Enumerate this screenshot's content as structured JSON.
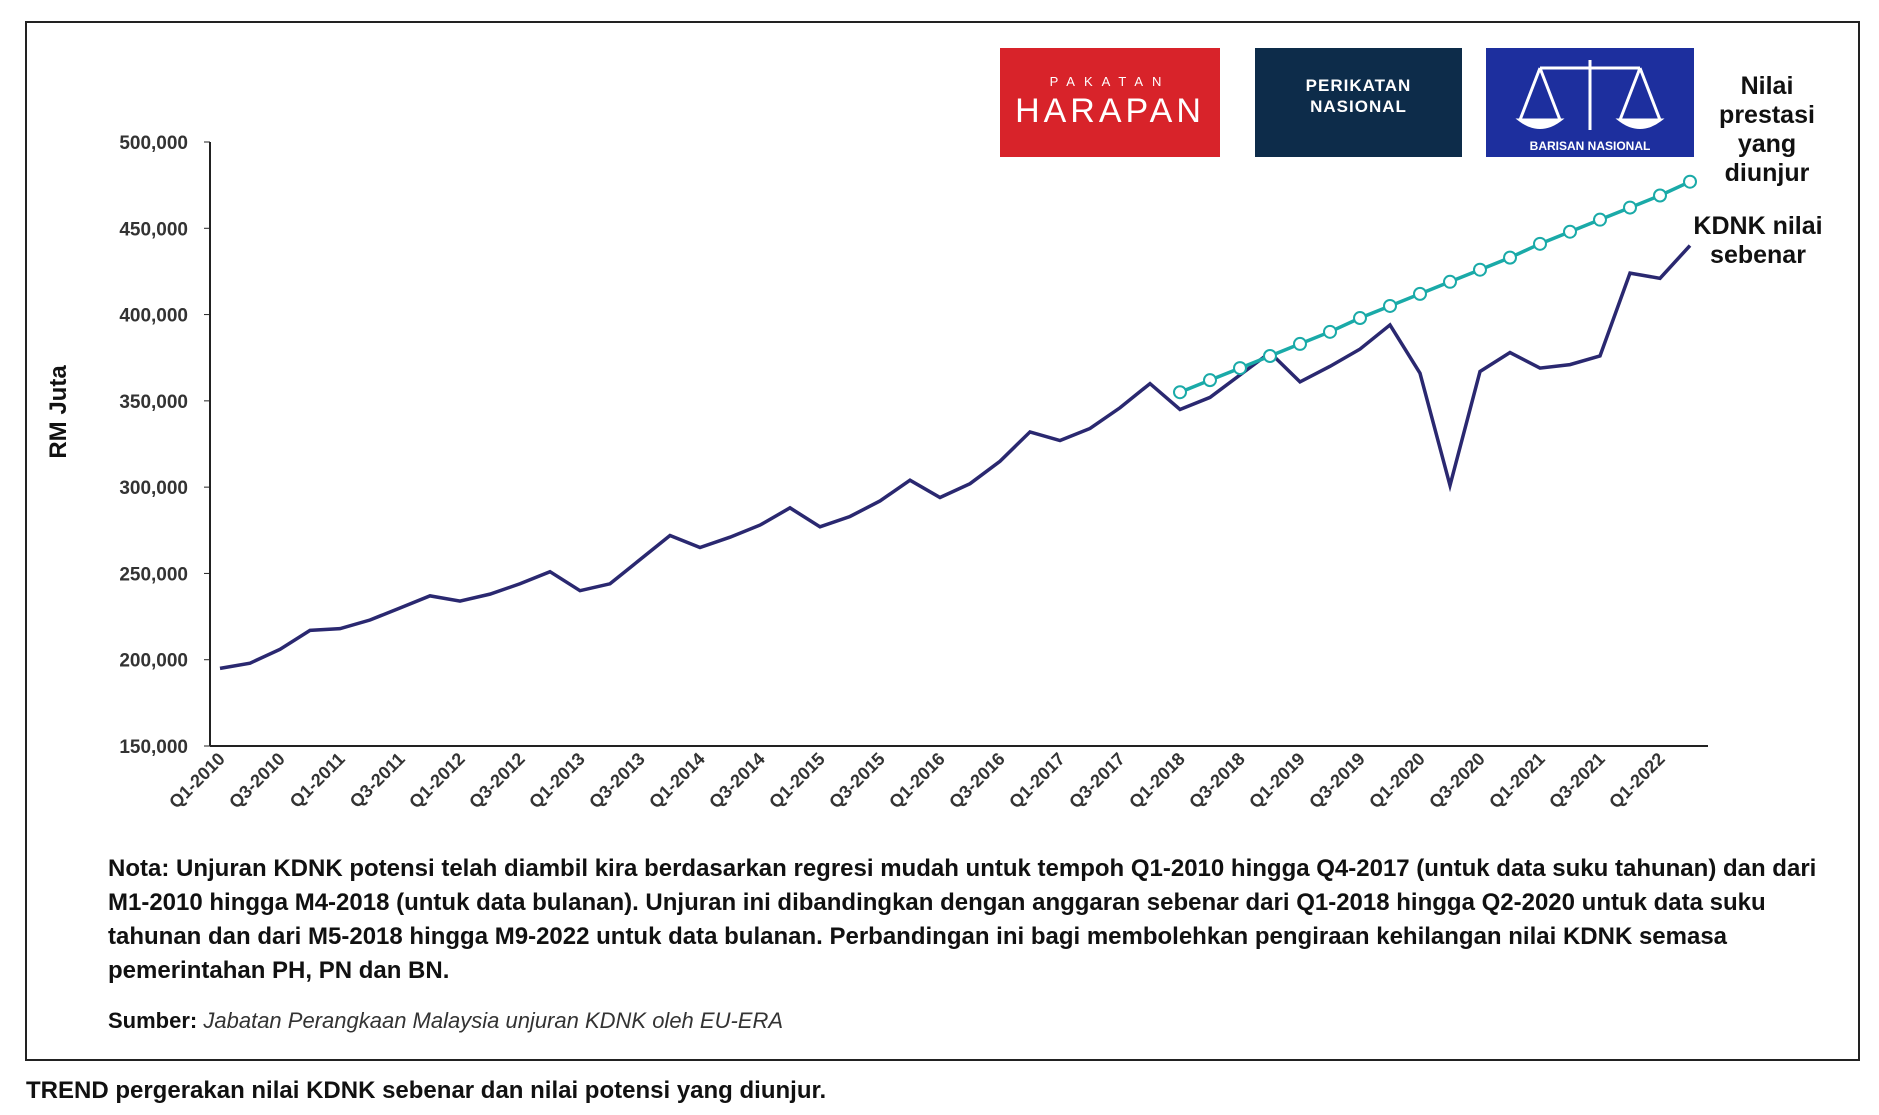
{
  "chart_data": {
    "type": "line",
    "y_label": "RM Juta",
    "logos": {
      "ph_top": "PAKATAN",
      "ph_main": "HARAPAN",
      "pn": "PERIKATAN NASIONAL",
      "bn": "BARISAN NASIONAL"
    },
    "annotations": {
      "projected": "Nilai prestasi yang diunjur",
      "actual": "KDNK nilai sebenar"
    },
    "note": "Nota: Unjuran KDNK potensi telah diambil kira berdasarkan regresi mudah untuk tempoh Q1-2010 hingga Q4-2017 (untuk data suku tahunan) dan dari M1-2010 hingga M4-2018 (untuk data bulanan). Unjuran ini dibandingkan dengan anggaran sebenar dari Q1-2018 hingga Q2-2020 untuk data suku tahunan dan dari M5-2018 hingga M9-2022 untuk data bulanan. Perbandingan ini bagi membolehkan pengiraan kehilangan nilai KDNK semasa pemerintahan PH, PN dan BN.",
    "source_label": "Sumber:",
    "source_text": "Jabatan Perangkaan Malaysia unjuran KDNK oleh EU-ERA",
    "caption": "TREND pergerakan nilai KDNK sebenar dan nilai potensi yang diunjur.",
    "categories": [
      "Q1-2010",
      null,
      "Q3-2010",
      null,
      "Q1-2011",
      null,
      "Q3-2011",
      null,
      "Q1-2012",
      null,
      "Q3-2012",
      null,
      "Q1-2013",
      null,
      "Q3-2013",
      null,
      "Q1-2014",
      null,
      "Q3-2014",
      null,
      "Q1-2015",
      null,
      "Q3-2015",
      null,
      "Q1-2016",
      null,
      "Q3-2016",
      null,
      "Q1-2017",
      null,
      "Q3-2017",
      null,
      "Q1-2018",
      null,
      "Q3-2018",
      null,
      "Q1-2019",
      null,
      "Q3-2019",
      null,
      "Q1-2020",
      null,
      "Q3-2020",
      null,
      "Q1-2021",
      null,
      "Q3-2021",
      null,
      "Q1-2022",
      null
    ],
    "series": [
      {
        "name": "KDNK nilai sebenar",
        "color": "#2a2870",
        "values": [
          195000,
          198000,
          206000,
          217000,
          218000,
          223000,
          230000,
          237000,
          234000,
          238000,
          244000,
          251000,
          240000,
          244000,
          258000,
          272000,
          265000,
          271000,
          278000,
          288000,
          277000,
          283000,
          292000,
          304000,
          294000,
          302000,
          315000,
          332000,
          327000,
          334000,
          346000,
          360000,
          345000,
          352000,
          365000,
          378000,
          361000,
          370000,
          380000,
          394000,
          366000,
          301000,
          367000,
          378000,
          369000,
          371000,
          376000,
          424000,
          421000,
          440000
        ]
      },
      {
        "name": "Nilai prestasi yang diunjur",
        "color": "#1aaaa8",
        "marker": "circle",
        "values": [
          null,
          null,
          null,
          null,
          null,
          null,
          null,
          null,
          null,
          null,
          null,
          null,
          null,
          null,
          null,
          null,
          null,
          null,
          null,
          null,
          null,
          null,
          null,
          null,
          null,
          null,
          null,
          null,
          null,
          null,
          null,
          null,
          355000,
          362000,
          369000,
          376000,
          383000,
          390000,
          398000,
          405000,
          412000,
          419000,
          426000,
          433000,
          441000,
          448000,
          455000,
          462000,
          469000,
          477000
        ]
      }
    ],
    "ylim": [
      150000,
      500000
    ],
    "yticks": [
      {
        "value": 150000,
        "label": "150,000"
      },
      {
        "value": 200000,
        "label": "200,000"
      },
      {
        "value": 250000,
        "label": "250,000"
      },
      {
        "value": 300000,
        "label": "300,000"
      },
      {
        "value": 350000,
        "label": "350,000"
      },
      {
        "value": 400000,
        "label": "400,000"
      },
      {
        "value": 450000,
        "label": "450,000"
      },
      {
        "value": 500000,
        "label": "500,000"
      }
    ],
    "grid": false
  }
}
